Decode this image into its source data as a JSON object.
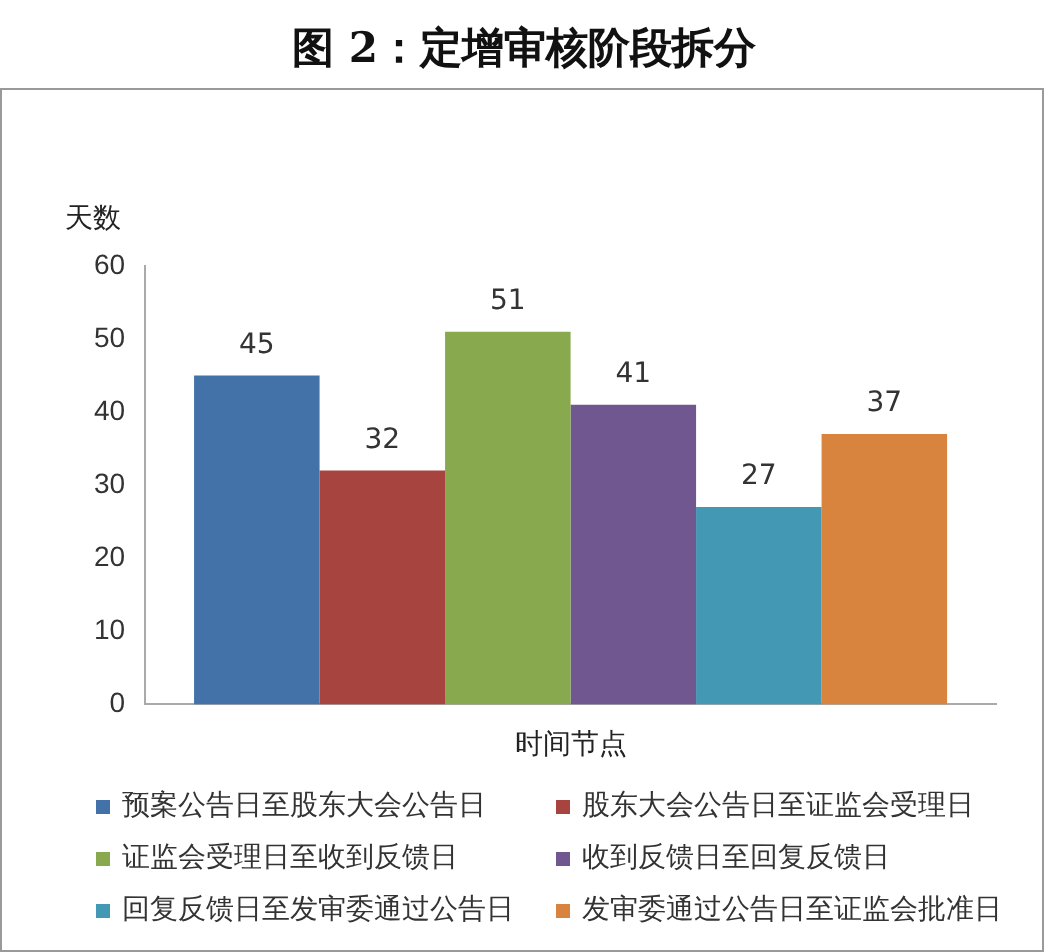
{
  "chart_data": {
    "type": "bar",
    "title": "图 2：定增审核阶段拆分",
    "xlabel": "时间节点",
    "ylabel": "天数",
    "categories": [
      null
    ],
    "series": [
      {
        "name": "预案公告日至股东大会公告日",
        "color": "#4272a8",
        "values": [
          45
        ]
      },
      {
        "name": "股东大会公告日至证监会受理日",
        "color": "#a8443f",
        "values": [
          32
        ]
      },
      {
        "name": "证监会受理日至收到反馈日",
        "color": "#88a94e",
        "values": [
          51
        ]
      },
      {
        "name": "收到反馈日至回复反馈日",
        "color": "#70578f",
        "values": [
          41
        ]
      },
      {
        "name": "回复反馈日至发审委通过公告日",
        "color": "#4399b3",
        "values": [
          27
        ]
      },
      {
        "name": "发审委通过公告日至证监会批准日",
        "color": "#d9843e",
        "values": [
          37
        ]
      }
    ],
    "ylim": [
      0,
      60
    ],
    "yticks": [
      0,
      10,
      20,
      30,
      40,
      50,
      60
    ],
    "grid": false,
    "legend": "bottom",
    "data_labels": true,
    "tick_labels": "y"
  }
}
